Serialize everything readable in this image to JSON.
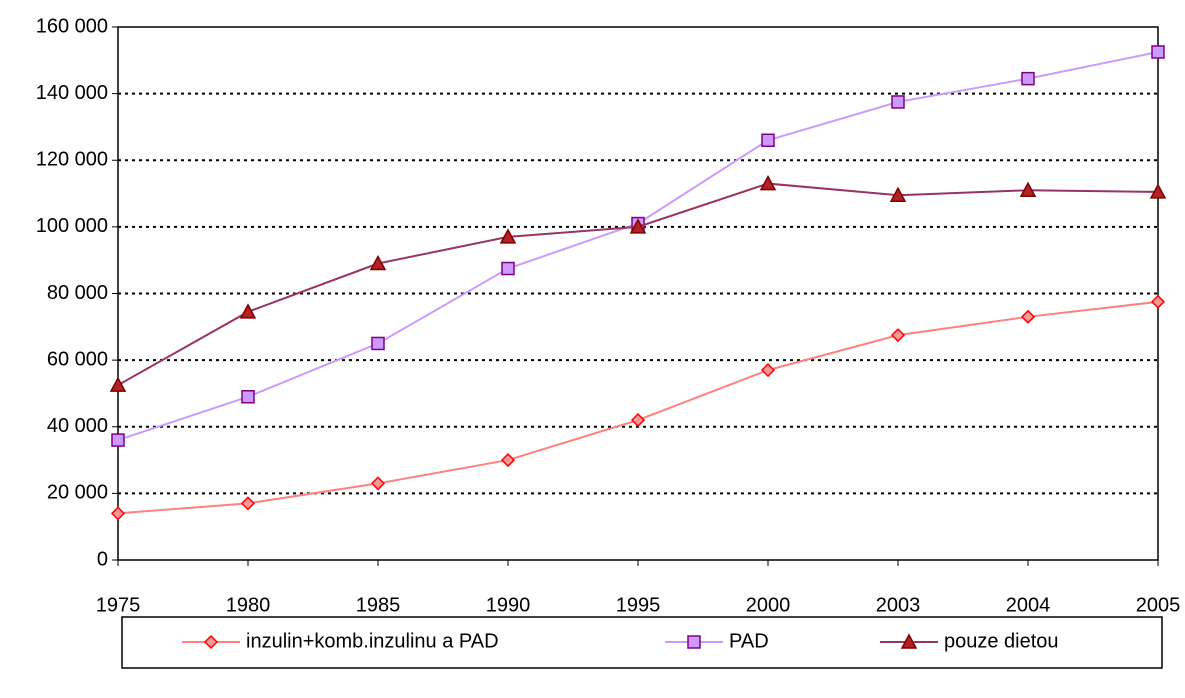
{
  "chart_data": {
    "type": "line",
    "categories": [
      "1975",
      "1980",
      "1985",
      "1990",
      "1995",
      "2000",
      "2003",
      "2004",
      "2005"
    ],
    "series": [
      {
        "name": "inzulin+komb.inzulinu a PAD",
        "color": "#ff8080",
        "marker": "diamond",
        "marker_fill": "#ff9999",
        "marker_edge": "#ff0000",
        "values": [
          14000,
          17000,
          23000,
          30000,
          42000,
          57000,
          67500,
          73000,
          77500
        ]
      },
      {
        "name": "PAD",
        "color": "#cc99ff",
        "marker": "square",
        "marker_fill": "#cc99ff",
        "marker_edge": "#800080",
        "values": [
          36000,
          49000,
          65000,
          87500,
          101000,
          126000,
          137500,
          144500,
          152500
        ]
      },
      {
        "name": "pouze dietou",
        "color": "#993366",
        "marker": "triangle",
        "marker_fill": "#b22222",
        "marker_edge": "#800000",
        "values": [
          52500,
          74500,
          89000,
          97000,
          100000,
          113000,
          109500,
          111000,
          110500
        ]
      }
    ],
    "ylim": [
      0,
      160000
    ],
    "yticks": [
      0,
      {
        "value": 20000,
        "label": "20 000"
      },
      {
        "value": 40000,
        "label": "40 000"
      },
      {
        "value": 60000,
        "label": "60 000"
      },
      {
        "value": 80000,
        "label": "80 000"
      },
      {
        "value": 100000,
        "label": "100 000"
      },
      {
        "value": 120000,
        "label": "120 000"
      },
      {
        "value": 140000,
        "label": "140 000"
      },
      {
        "value": 160000,
        "label": "160 000"
      }
    ],
    "grid": true,
    "legend": "bottom"
  }
}
